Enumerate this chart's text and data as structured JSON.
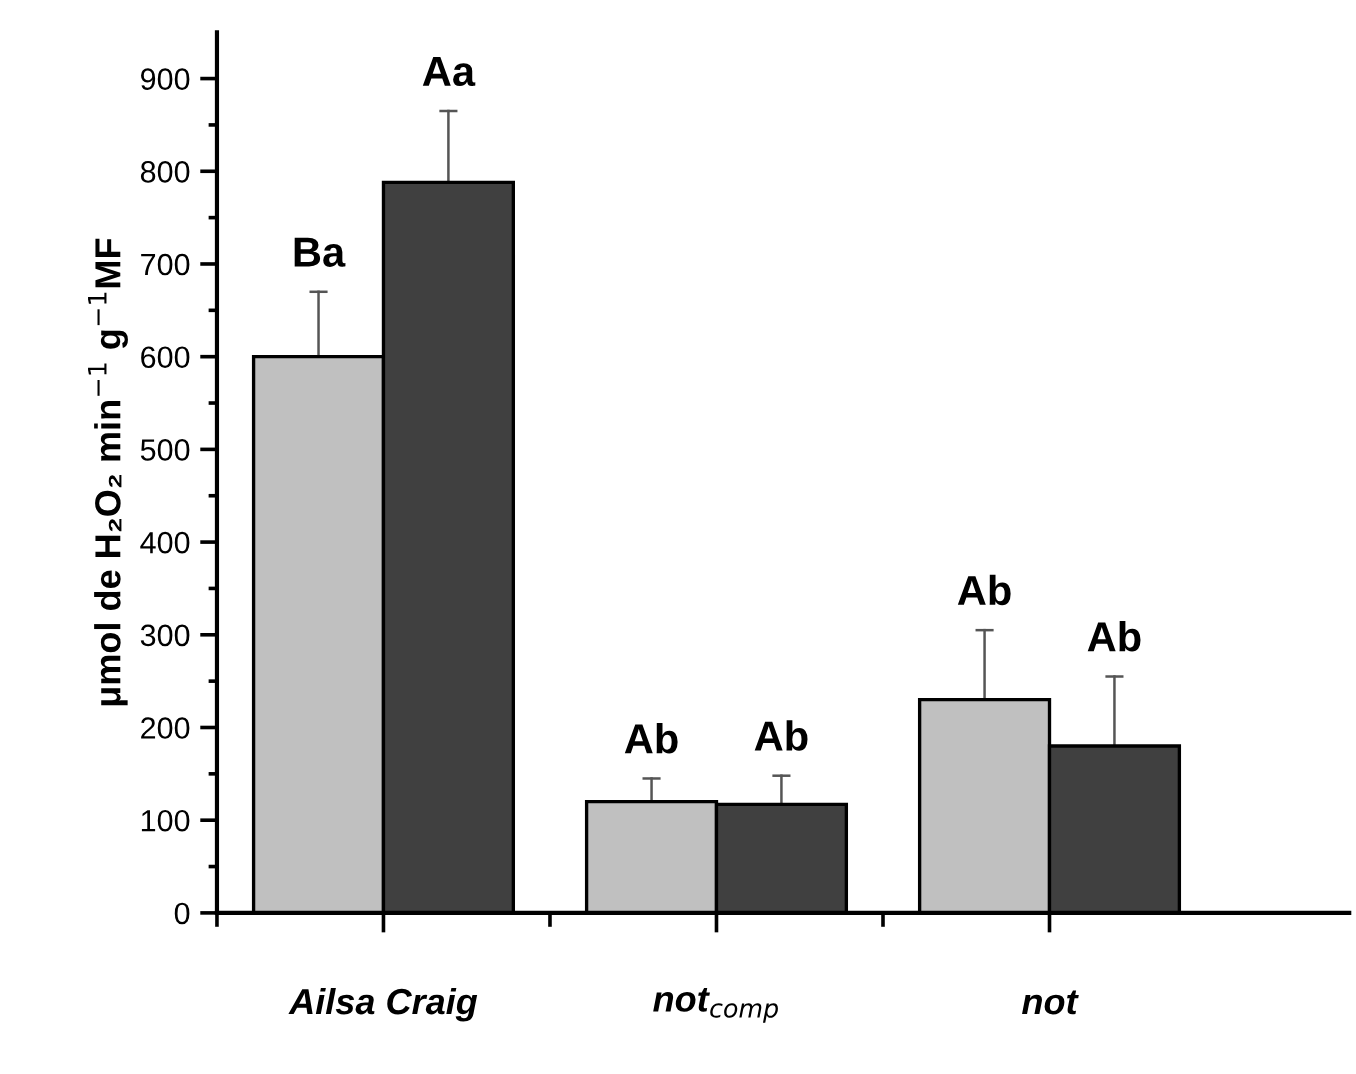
{
  "chart_data": {
    "type": "bar",
    "ylabel": "μmol de H₂O₂ min$^{−1}$ g$^{−1}$MF",
    "categories": [
      "Ailsa Craig",
      "not$_{comp}$",
      "not"
    ],
    "series": [
      {
        "color": "#c0c0c0",
        "values": [
          600,
          120,
          230
        ],
        "errors": [
          [
            600,
            670
          ],
          [
            120,
            145
          ],
          [
            230,
            305
          ]
        ],
        "value_labels": [
          "Ba",
          "Ab",
          "Ab"
        ]
      },
      {
        "color": "#404040",
        "values": [
          788,
          117,
          180
        ],
        "errors": [
          [
            788,
            865
          ],
          [
            117,
            148
          ],
          [
            180,
            255
          ]
        ],
        "value_labels": [
          "Aa",
          "Ab",
          "Ab"
        ]
      }
    ],
    "ylim": [
      0,
      950
    ],
    "yticks": [
      0,
      100,
      200,
      300,
      400,
      500,
      600,
      700,
      800,
      900
    ],
    "grid": false,
    "legend": false
  }
}
